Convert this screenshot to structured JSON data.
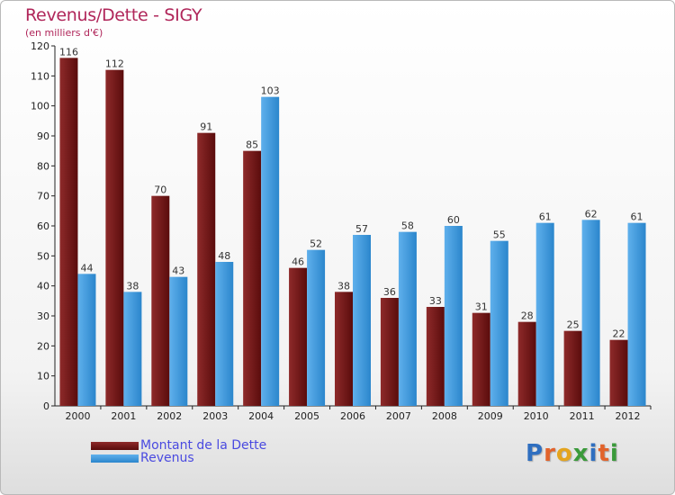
{
  "header": {
    "title": "Revenus/Dette - SIGY",
    "subtitle": "(en milliers d'€)"
  },
  "chart_data": {
    "type": "bar",
    "categories": [
      "2000",
      "2001",
      "2002",
      "2003",
      "2004",
      "2005",
      "2006",
      "2007",
      "2008",
      "2009",
      "2010",
      "2011",
      "2012"
    ],
    "series": [
      {
        "name": "Montant de la Dette",
        "color": "#7a1c1c",
        "values": [
          116,
          112,
          70,
          91,
          85,
          46,
          38,
          36,
          33,
          31,
          28,
          25,
          22
        ]
      },
      {
        "name": "Revenus",
        "color": "#3d9be0",
        "values": [
          44,
          38,
          43,
          48,
          103,
          52,
          57,
          58,
          60,
          55,
          61,
          62,
          61
        ]
      }
    ],
    "ylim": [
      0,
      120
    ],
    "yticks": [
      0,
      10,
      20,
      30,
      40,
      50,
      60,
      70,
      80,
      90,
      100,
      110,
      120
    ],
    "grid": false,
    "legend": "bottom-left"
  },
  "logo": {
    "letters": [
      "P",
      "r",
      "o",
      "x",
      "i",
      "t",
      "i"
    ],
    "colors": [
      "#2f6fc0",
      "#e2632b",
      "#e4a41e",
      "#3a9a3a",
      "#2f6fc0",
      "#e2632b",
      "#3a9a3a"
    ]
  }
}
